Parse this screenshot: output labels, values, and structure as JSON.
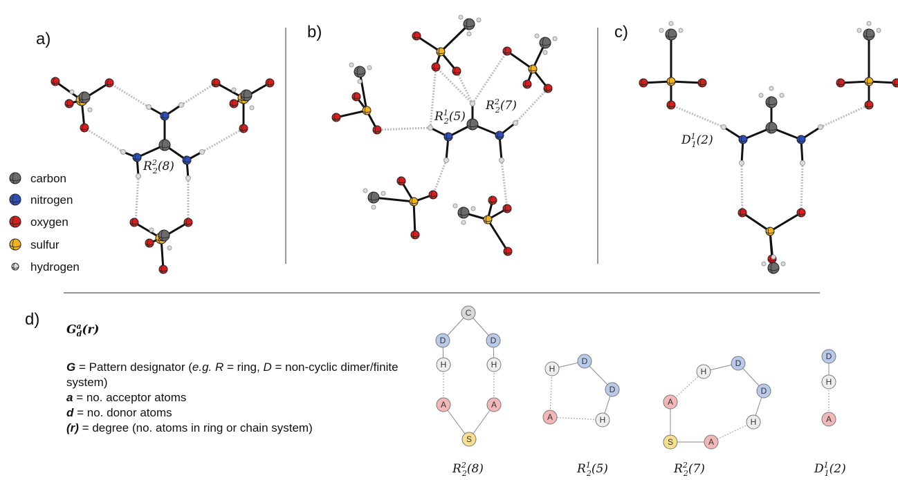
{
  "panels": {
    "a": "a)",
    "b": "b)",
    "c": "c)",
    "d": "d)"
  },
  "legend": {
    "items": [
      {
        "label": "carbon",
        "color": "#6b6b6b"
      },
      {
        "label": "nitrogen",
        "color": "#2f4fb8"
      },
      {
        "label": "oxygen",
        "color": "#d21f1f"
      },
      {
        "label": "sulfur",
        "color": "#f2b21c"
      },
      {
        "label": "hydrogen",
        "color": "#dcdcdc"
      }
    ]
  },
  "annotations": {
    "a_ring": {
      "base": "R",
      "sup": "2",
      "sub": "2",
      "rest": "(8)"
    },
    "b_ring1": {
      "base": "R",
      "sup": "1",
      "sub": "2",
      "rest": "(5)"
    },
    "b_ring2": {
      "base": "R",
      "sup": "2",
      "sub": "2",
      "rest": "(7)"
    },
    "c_dimer": {
      "base": "D",
      "sup": "1",
      "sub": "1",
      "rest": "(2)"
    }
  },
  "definitions": {
    "title": {
      "base": "G",
      "sup": "a",
      "sub": "d",
      "rest": "(r)"
    },
    "lines": [
      {
        "sym": "G",
        "text": " = Pattern designator (",
        "italic": "e.g. R",
        "text2": " = ring, ",
        "italic2": "D",
        "text3": " = non-cyclic dimer/finite system)"
      },
      {
        "sym": "a",
        "text": " = no. acceptor atoms"
      },
      {
        "sym": "d",
        "text": " = no. donor atoms"
      },
      {
        "sym": "(r)",
        "text": " = degree (no. atoms in ring or chain system)"
      }
    ]
  },
  "graph_sets": {
    "colors": {
      "C": "#d9d9d9",
      "D": "#b8c9ea",
      "H": "#eeeeee",
      "A": "#f2b7b7",
      "S": "#f7df8f"
    },
    "labels": [
      {
        "base": "R",
        "sup": "2",
        "sub": "2",
        "rest": "(8)"
      },
      {
        "base": "R",
        "sup": "1",
        "sub": "2",
        "rest": "(5)"
      },
      {
        "base": "R",
        "sup": "2",
        "sub": "2",
        "rest": "(7)"
      },
      {
        "base": "D",
        "sup": "1",
        "sub": "1",
        "rest": "(2)"
      }
    ]
  }
}
